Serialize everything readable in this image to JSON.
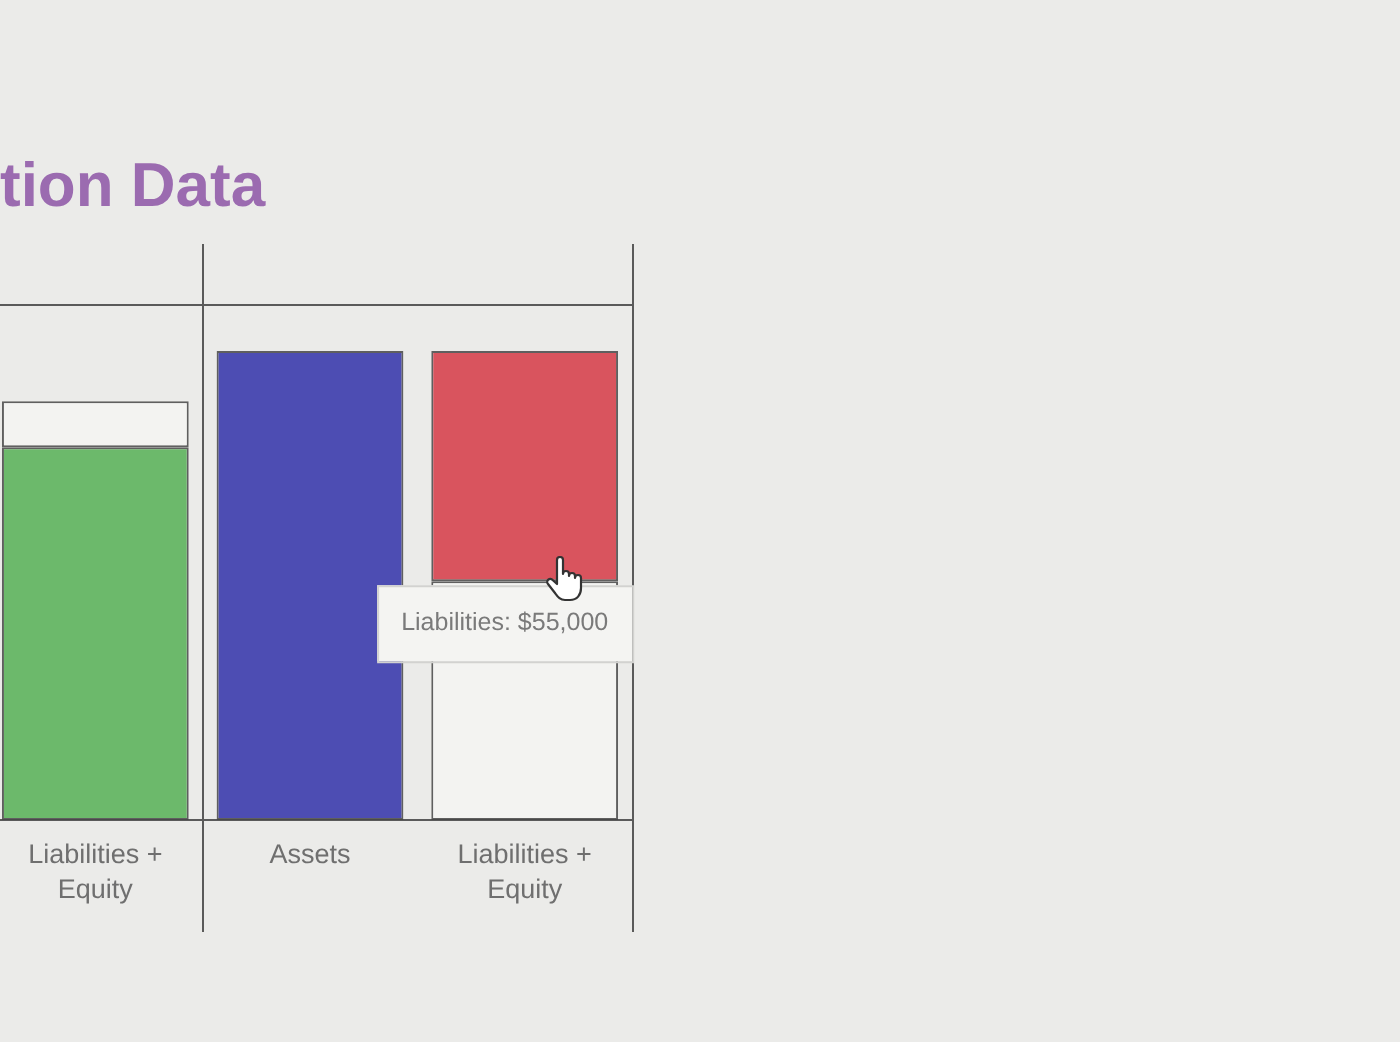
{
  "chart_data": {
    "type": "bar",
    "title": "tion Data",
    "categories": [
      "Liabilities + Equity",
      "Assets",
      "Liabilities + Equity"
    ],
    "stacked": true,
    "tick_labels": "x",
    "series": [
      {
        "colors": [
          "#6cb96b",
          "#4d4db3",
          "#f3f3f1"
        ],
        "values": [
          89000,
          112000,
          57000
        ]
      },
      {
        "colors": [
          "#f3f3f1",
          null,
          "#d9545e"
        ],
        "values": [
          11000,
          null,
          55000
        ],
        "value_labels": [
          null,
          null,
          "Liabilities: $55,000"
        ]
      }
    ]
  }
}
